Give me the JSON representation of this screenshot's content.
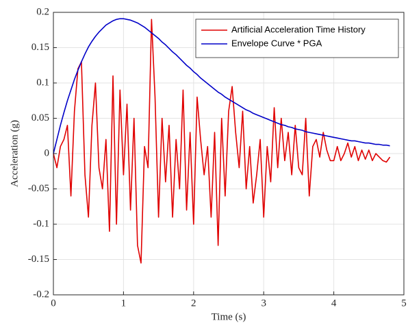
{
  "chart_data": {
    "type": "line",
    "x_label": "Time (s)",
    "y_label": "Acceleration (g)",
    "xlim": [
      0,
      5
    ],
    "xticks": [
      0,
      1,
      2,
      3,
      4,
      5
    ],
    "ylim": [
      -0.2,
      0.2
    ],
    "yticks": [
      0.2,
      0.15,
      0.1,
      0.05,
      0,
      -0.05,
      -0.1,
      -0.15,
      -0.2
    ],
    "grid": true,
    "legend_position": "northeast",
    "x": [
      0,
      0.05,
      0.1,
      0.15,
      0.2,
      0.25,
      0.3,
      0.35,
      0.4,
      0.45,
      0.5,
      0.55,
      0.6,
      0.65,
      0.7,
      0.75,
      0.8,
      0.85,
      0.9,
      0.95,
      1,
      1.05,
      1.1,
      1.15,
      1.2,
      1.25,
      1.3,
      1.35,
      1.4,
      1.45,
      1.5,
      1.55,
      1.6,
      1.65,
      1.7,
      1.75,
      1.8,
      1.85,
      1.9,
      1.95,
      2,
      2.05,
      2.1,
      2.15,
      2.2,
      2.25,
      2.3,
      2.35,
      2.4,
      2.45,
      2.5,
      2.55,
      2.6,
      2.65,
      2.7,
      2.75,
      2.8,
      2.85,
      2.9,
      2.95,
      3,
      3.05,
      3.1,
      3.15,
      3.2,
      3.25,
      3.3,
      3.35,
      3.4,
      3.45,
      3.5,
      3.55,
      3.6,
      3.65,
      3.7,
      3.75,
      3.8,
      3.85,
      3.9,
      3.95,
      4,
      4.05,
      4.1,
      4.15,
      4.2,
      4.25,
      4.3,
      4.35,
      4.4,
      4.45,
      4.5,
      4.55,
      4.6,
      4.65,
      4.7,
      4.75,
      4.8
    ],
    "series": [
      {
        "name": "Artificial Acceleration Time History",
        "color": "#e00000",
        "values": [
          0,
          -0.02,
          0.01,
          0.02,
          0.04,
          -0.06,
          0.06,
          0.12,
          0.13,
          -0.03,
          -0.09,
          0.04,
          0.1,
          -0.02,
          -0.05,
          0.02,
          -0.11,
          0.11,
          -0.1,
          0.09,
          -0.03,
          0.07,
          -0.08,
          0.05,
          -0.13,
          -0.155,
          0.01,
          -0.02,
          0.19,
          0.08,
          -0.09,
          0.05,
          -0.04,
          0.04,
          -0.09,
          0.02,
          -0.05,
          0.09,
          -0.08,
          0.03,
          -0.1,
          0.08,
          0.02,
          -0.03,
          0.01,
          -0.09,
          0.03,
          -0.13,
          0.05,
          -0.06,
          0.06,
          0.095,
          0.03,
          -0.02,
          0.06,
          -0.05,
          0.01,
          -0.07,
          -0.03,
          0.02,
          -0.09,
          0.01,
          -0.04,
          0.065,
          -0.02,
          0.05,
          -0.01,
          0.03,
          -0.03,
          0.04,
          -0.02,
          -0.03,
          0.05,
          -0.06,
          0.01,
          0.02,
          -0.005,
          0.03,
          0.005,
          -0.01,
          -0.01,
          0.01,
          -0.01,
          0,
          0.015,
          -0.005,
          0.01,
          -0.01,
          0.005,
          -0.008,
          0.005,
          -0.01,
          0,
          -0.005,
          -0.01,
          -0.012,
          -0.005
        ]
      },
      {
        "name": "Envelope Curve * PGA",
        "color": "#0000c8",
        "values": [
          0,
          0.02,
          0.04,
          0.058,
          0.075,
          0.09,
          0.105,
          0.118,
          0.13,
          0.141,
          0.151,
          0.159,
          0.166,
          0.172,
          0.177,
          0.182,
          0.185,
          0.188,
          0.19,
          0.191,
          0.191,
          0.19,
          0.189,
          0.187,
          0.185,
          0.182,
          0.179,
          0.175,
          0.171,
          0.167,
          0.163,
          0.158,
          0.154,
          0.149,
          0.144,
          0.14,
          0.135,
          0.13,
          0.125,
          0.121,
          0.116,
          0.112,
          0.107,
          0.103,
          0.099,
          0.095,
          0.091,
          0.087,
          0.084,
          0.08,
          0.077,
          0.074,
          0.071,
          0.068,
          0.065,
          0.062,
          0.06,
          0.057,
          0.055,
          0.053,
          0.051,
          0.049,
          0.047,
          0.045,
          0.043,
          0.041,
          0.04,
          0.038,
          0.037,
          0.035,
          0.034,
          0.033,
          0.031,
          0.03,
          0.029,
          0.028,
          0.027,
          0.026,
          0.025,
          0.024,
          0.023,
          0.022,
          0.021,
          0.02,
          0.019,
          0.018,
          0.018,
          0.017,
          0.016,
          0.015,
          0.015,
          0.014,
          0.013,
          0.013,
          0.012,
          0.012,
          0.011
        ]
      }
    ]
  }
}
